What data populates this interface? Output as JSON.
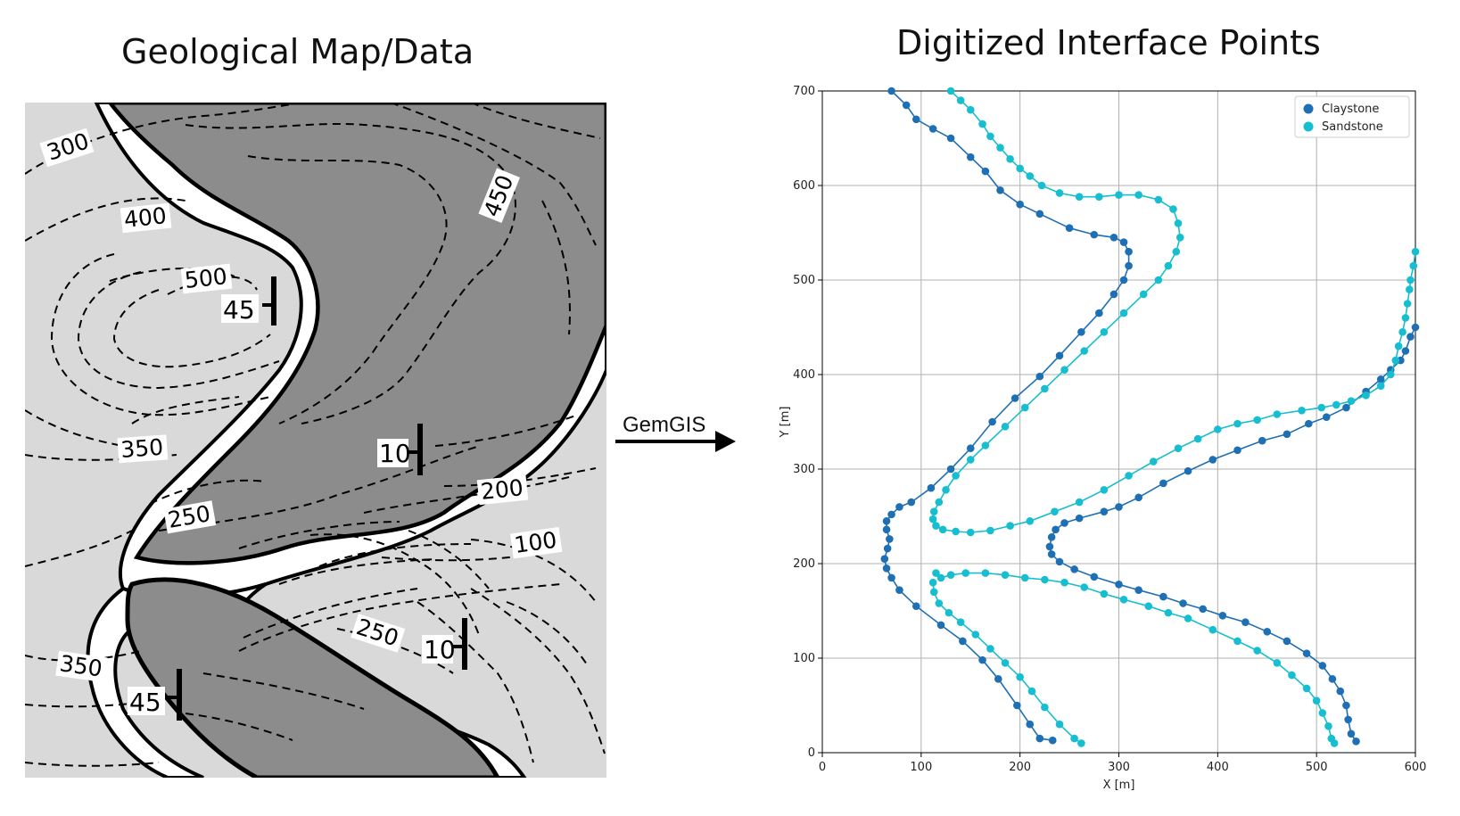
{
  "left_title": "Geological Map/Data",
  "right_title": "Digitized Interface Points",
  "arrow_label": "GemGIS",
  "map": {
    "contour_labels": [
      "300",
      "400",
      "500",
      "450",
      "350",
      "250",
      "200",
      "100",
      "250",
      "350"
    ],
    "dip_labels": [
      "45",
      "10",
      "10",
      "45"
    ],
    "colors": {
      "background": "#d9d9d9",
      "dark_unit": "#8c8c8c",
      "band": "#ffffff",
      "line": "#000000"
    }
  },
  "chart_data": {
    "type": "scatter",
    "title": "",
    "xlabel": "X [m]",
    "ylabel": "Y [m]",
    "xlim": [
      0,
      600
    ],
    "ylim": [
      0,
      700
    ],
    "xticks": [
      0,
      100,
      200,
      300,
      400,
      500,
      600
    ],
    "yticks": [
      0,
      100,
      200,
      300,
      400,
      500,
      600,
      700
    ],
    "grid": true,
    "legend_position": "top-right",
    "series": [
      {
        "name": "Claystone",
        "color": "#1f6fb5",
        "paths": [
          [
            [
              70,
              700
            ],
            [
              85,
              685
            ],
            [
              95,
              670
            ],
            [
              112,
              660
            ],
            [
              130,
              650
            ],
            [
              150,
              630
            ],
            [
              165,
              615
            ],
            [
              180,
              595
            ],
            [
              200,
              580
            ],
            [
              220,
              570
            ],
            [
              250,
              555
            ],
            [
              275,
              548
            ],
            [
              295,
              545
            ],
            [
              305,
              540
            ],
            [
              310,
              530
            ],
            [
              310,
              515
            ],
            [
              305,
              500
            ],
            [
              295,
              485
            ],
            [
              280,
              465
            ],
            [
              262,
              445
            ],
            [
              240,
              420
            ],
            [
              220,
              398
            ],
            [
              195,
              375
            ],
            [
              172,
              350
            ],
            [
              150,
              322
            ],
            [
              130,
              300
            ],
            [
              110,
              280
            ],
            [
              90,
              265
            ],
            [
              78,
              260
            ],
            [
              70,
              252
            ],
            [
              65,
              245
            ],
            [
              65,
              236
            ],
            [
              68,
              226
            ],
            [
              66,
              216
            ],
            [
              63,
              205
            ],
            [
              65,
              195
            ],
            [
              70,
              185
            ],
            [
              78,
              172
            ],
            [
              95,
              155
            ],
            [
              120,
              135
            ],
            [
              142,
              118
            ],
            [
              162,
              98
            ],
            [
              178,
              78
            ],
            [
              197,
              50
            ],
            [
              210,
              30
            ],
            [
              220,
              15
            ],
            [
              233,
              13
            ]
          ],
          [
            [
              600,
              450
            ],
            [
              595,
              440
            ],
            [
              590,
              425
            ],
            [
              585,
              415
            ],
            [
              575,
              405
            ],
            [
              565,
              395
            ],
            [
              550,
              382
            ],
            [
              530,
              365
            ],
            [
              510,
              355
            ],
            [
              492,
              348
            ],
            [
              470,
              337
            ],
            [
              445,
              330
            ],
            [
              420,
              320
            ],
            [
              395,
              310
            ],
            [
              370,
              298
            ],
            [
              345,
              285
            ],
            [
              320,
              270
            ],
            [
              300,
              260
            ],
            [
              285,
              255
            ],
            [
              260,
              248
            ],
            [
              245,
              243
            ],
            [
              236,
              236
            ],
            [
              232,
              228
            ],
            [
              230,
              218
            ],
            [
              232,
              210
            ],
            [
              240,
              202
            ],
            [
              255,
              194
            ],
            [
              275,
              186
            ],
            [
              300,
              178
            ],
            [
              320,
              172
            ],
            [
              345,
              165
            ],
            [
              365,
              158
            ],
            [
              385,
              152
            ],
            [
              405,
              145
            ],
            [
              428,
              138
            ],
            [
              450,
              128
            ],
            [
              470,
              118
            ],
            [
              490,
              105
            ],
            [
              506,
              92
            ],
            [
              516,
              78
            ],
            [
              524,
              65
            ],
            [
              530,
              50
            ],
            [
              532,
              35
            ],
            [
              535,
              20
            ],
            [
              540,
              12
            ]
          ]
        ]
      },
      {
        "name": "Sandstone",
        "color": "#17becf",
        "paths": [
          [
            [
              130,
              700
            ],
            [
              140,
              690
            ],
            [
              150,
              680
            ],
            [
              162,
              665
            ],
            [
              170,
              652
            ],
            [
              180,
              640
            ],
            [
              190,
              628
            ],
            [
              200,
              618
            ],
            [
              210,
              610
            ],
            [
              222,
              600
            ],
            [
              240,
              592
            ],
            [
              260,
              588
            ],
            [
              280,
              588
            ],
            [
              300,
              590
            ],
            [
              320,
              590
            ],
            [
              340,
              585
            ],
            [
              355,
              575
            ],
            [
              360,
              560
            ],
            [
              362,
              545
            ],
            [
              358,
              530
            ],
            [
              350,
              515
            ],
            [
              340,
              500
            ],
            [
              325,
              485
            ],
            [
              305,
              465
            ],
            [
              285,
              445
            ],
            [
              265,
              425
            ],
            [
              245,
              405
            ],
            [
              225,
              385
            ],
            [
              205,
              365
            ],
            [
              185,
              345
            ],
            [
              165,
              325
            ],
            [
              150,
              310
            ],
            [
              135,
              293
            ],
            [
              125,
              278
            ],
            [
              118,
              265
            ],
            [
              113,
              255
            ],
            [
              112,
              247
            ],
            [
              115,
              240
            ],
            [
              122,
              236
            ],
            [
              135,
              234
            ],
            [
              150,
              233
            ],
            [
              170,
              235
            ],
            [
              190,
              240
            ],
            [
              210,
              245
            ],
            [
              235,
              255
            ],
            [
              260,
              265
            ],
            [
              285,
              278
            ],
            [
              310,
              293
            ],
            [
              335,
              308
            ],
            [
              360,
              322
            ],
            [
              380,
              332
            ],
            [
              400,
              342
            ],
            [
              420,
              348
            ],
            [
              440,
              352
            ],
            [
              460,
              358
            ],
            [
              485,
              362
            ],
            [
              505,
              365
            ],
            [
              520,
              368
            ],
            [
              535,
              372
            ],
            [
              550,
              378
            ],
            [
              565,
              388
            ],
            [
              575,
              400
            ],
            [
              580,
              415
            ],
            [
              583,
              430
            ],
            [
              587,
              445
            ],
            [
              590,
              460
            ],
            [
              592,
              475
            ],
            [
              594,
              490
            ],
            [
              595,
              500
            ],
            [
              598,
              515
            ],
            [
              600,
              530
            ]
          ],
          [
            [
              115,
              190
            ],
            [
              120,
              185
            ],
            [
              130,
              188
            ],
            [
              145,
              190
            ],
            [
              165,
              190
            ],
            [
              185,
              188
            ],
            [
              205,
              185
            ],
            [
              225,
              183
            ],
            [
              245,
              180
            ],
            [
              265,
              175
            ],
            [
              285,
              168
            ],
            [
              305,
              162
            ],
            [
              330,
              155
            ],
            [
              350,
              148
            ],
            [
              370,
              142
            ],
            [
              395,
              130
            ],
            [
              420,
              118
            ],
            [
              440,
              108
            ],
            [
              460,
              95
            ],
            [
              475,
              82
            ],
            [
              490,
              68
            ],
            [
              500,
              55
            ],
            [
              506,
              42
            ],
            [
              512,
              28
            ],
            [
              515,
              15
            ],
            [
              518,
              10
            ]
          ],
          [
            [
              112,
              180
            ],
            [
              113,
              170
            ],
            [
              118,
              158
            ],
            [
              128,
              148
            ],
            [
              140,
              138
            ],
            [
              155,
              125
            ],
            [
              170,
              110
            ],
            [
              185,
              95
            ],
            [
              200,
              80
            ],
            [
              212,
              65
            ],
            [
              225,
              48
            ],
            [
              240,
              30
            ],
            [
              255,
              15
            ],
            [
              262,
              10
            ]
          ]
        ]
      }
    ]
  }
}
